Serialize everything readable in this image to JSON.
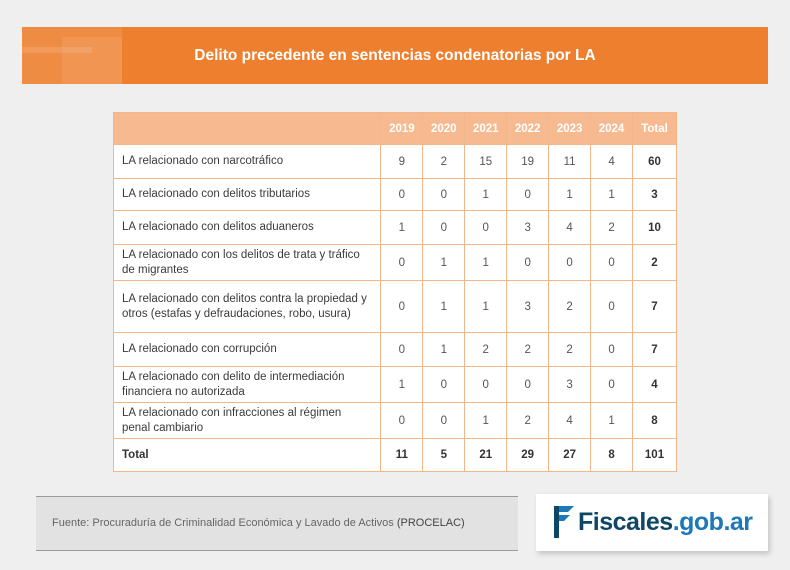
{
  "banner": {
    "title": "Delito precedente en sentencias condenatorias por LA"
  },
  "table": {
    "headers": [
      "",
      "2019",
      "2020",
      "2021",
      "2022",
      "2023",
      "2024",
      "Total"
    ],
    "rows": [
      {
        "label": "LA relacionado con narcotráfico",
        "values": [
          "9",
          "2",
          "15",
          "19",
          "11",
          "4"
        ],
        "total": "60"
      },
      {
        "label": "LA relacionado con delitos tributarios",
        "values": [
          "0",
          "0",
          "1",
          "0",
          "1",
          "1"
        ],
        "total": "3"
      },
      {
        "label": "LA relacionado con delitos aduaneros",
        "values": [
          "1",
          "0",
          "0",
          "3",
          "4",
          "2"
        ],
        "total": "10"
      },
      {
        "label": "LA relacionado con los delitos de trata y tráfico de migrantes",
        "values": [
          "0",
          "1",
          "1",
          "0",
          "0",
          "0"
        ],
        "total": "2"
      },
      {
        "label": "LA relacionado con delitos contra la propiedad y otros (estafas y defraudaciones, robo, usura)",
        "values": [
          "0",
          "1",
          "1",
          "3",
          "2",
          "0"
        ],
        "total": "7"
      },
      {
        "label": "LA relacionado con corrupción",
        "values": [
          "0",
          "1",
          "2",
          "2",
          "2",
          "0"
        ],
        "total": "7"
      },
      {
        "label": "LA relacionado con delito de intermediación financiera no autorizada",
        "values": [
          "1",
          "0",
          "0",
          "0",
          "3",
          "0"
        ],
        "total": "4"
      },
      {
        "label": "LA relacionado con infracciones al régimen penal cambiario",
        "values": [
          "0",
          "0",
          "1",
          "2",
          "4",
          "1"
        ],
        "total": "8"
      }
    ],
    "footer": {
      "label": "Total",
      "values": [
        "11",
        "5",
        "21",
        "29",
        "27",
        "8"
      ],
      "total": "101"
    }
  },
  "source": {
    "text": "Fuente: Procuraduría de Criminalidad Económica y Lavado de Activos",
    "abbr": "(PROCELAC)"
  },
  "logo": {
    "name": "Fiscales",
    "domain": ".gob.ar"
  },
  "colors": {
    "accent": "#ee7f2f",
    "header": "#f7b98f",
    "border": "#f2b68a",
    "logo_blue": "#0e4766"
  }
}
